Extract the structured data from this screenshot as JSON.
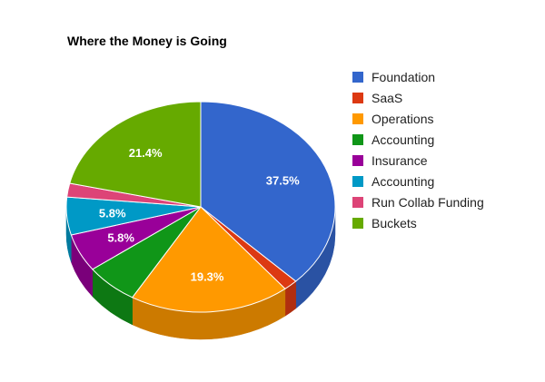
{
  "chart_data": {
    "type": "pie",
    "title": "Where the Money is Going",
    "three_d": true,
    "legend_position": "right",
    "slices": [
      {
        "name": "Foundation",
        "value": 37.5,
        "label": "37.5%",
        "color": "#3366cc",
        "side_color": "#2a52a3"
      },
      {
        "name": "SaaS",
        "value": 1.7,
        "label": "",
        "color": "#dc3912",
        "side_color": "#b02e0f"
      },
      {
        "name": "Operations",
        "value": 19.3,
        "label": "19.3%",
        "color": "#ff9900",
        "side_color": "#cc7a00"
      },
      {
        "name": "Accounting",
        "value": 6.4,
        "label": "",
        "color": "#109618",
        "side_color": "#0d7813"
      },
      {
        "name": "Insurance",
        "value": 5.8,
        "label": "5.8%",
        "color": "#990099",
        "side_color": "#7a007a"
      },
      {
        "name": "Accounting",
        "value": 5.8,
        "label": "5.8%",
        "color": "#0099c6",
        "side_color": "#007a9e"
      },
      {
        "name": "Run Collab Funding",
        "value": 2.1,
        "label": "",
        "color": "#dd4477",
        "side_color": "#b1365f"
      },
      {
        "name": "Buckets",
        "value": 21.4,
        "label": "21.4%",
        "color": "#66aa00",
        "side_color": "#528800"
      }
    ]
  }
}
